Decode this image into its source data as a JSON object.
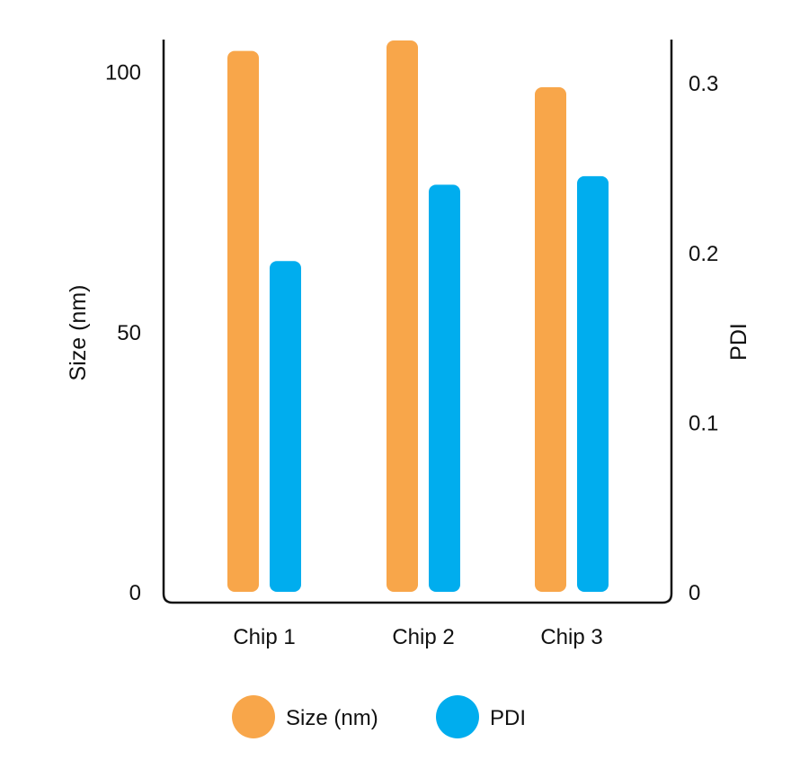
{
  "chart_data": {
    "type": "bar",
    "categories": [
      "Chip 1",
      "Chip 2",
      "Chip 3"
    ],
    "series": [
      {
        "name": "Size (nm)",
        "axis": "left",
        "color": "#F8A64A",
        "values": [
          104,
          106,
          97
        ]
      },
      {
        "name": "PDI",
        "axis": "right",
        "color": "#00ADEE",
        "values": [
          0.195,
          0.24,
          0.245
        ]
      }
    ],
    "ylabel": "Size (nm)",
    "ylim": [
      0,
      106
    ],
    "yticks": [
      {
        "value": 0,
        "label": "0"
      },
      {
        "value": 50,
        "label": "50"
      },
      {
        "value": 100,
        "label": "100"
      }
    ],
    "y2label": "PDI",
    "y2lim": [
      0,
      0.325
    ],
    "y2ticks": [
      {
        "value": 0,
        "label": "0"
      },
      {
        "value": 0.1,
        "label": "0.1"
      },
      {
        "value": 0.2,
        "label": "0.2"
      },
      {
        "value": 0.3,
        "label": "0.3"
      }
    ],
    "grid": false,
    "legend": {
      "position": "bottom-center"
    }
  }
}
